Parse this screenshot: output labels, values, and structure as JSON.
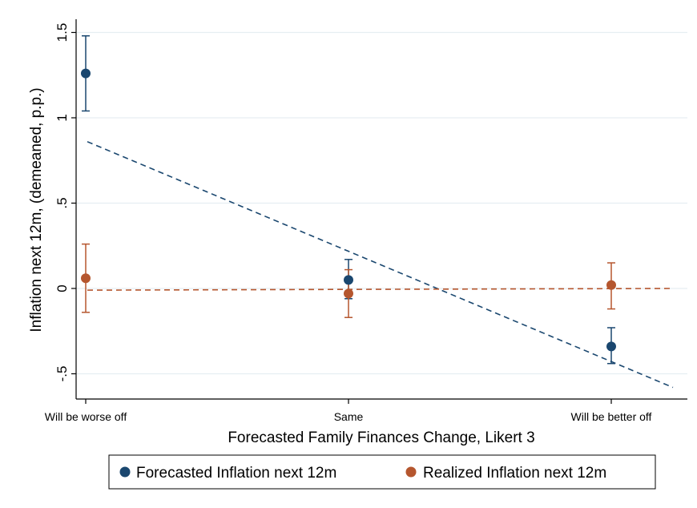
{
  "chart_data": {
    "type": "scatter",
    "xlabel": "Forecasted Family Finances Change, Likert 3",
    "ylabel": "Inflation next 12m, (demeaned, p.p.)",
    "categories": [
      "Will be worse off",
      "Same",
      "Will be better off"
    ],
    "ylim": [
      -0.62,
      1.55
    ],
    "yticks": [
      -0.5,
      0,
      0.5,
      1,
      1.5
    ],
    "ytick_labels": [
      "-.5",
      "0",
      ".5",
      "1",
      "1.5"
    ],
    "grid": true,
    "legend_position": "bottom",
    "series": [
      {
        "name": "Forecasted Inflation next 12m",
        "color": "#1a476f",
        "values": [
          1.26,
          0.05,
          -0.34
        ],
        "ci_low": [
          1.04,
          -0.06,
          -0.44
        ],
        "ci_high": [
          1.48,
          0.17,
          -0.23
        ],
        "fit_line": {
          "start": 0.86,
          "end": -0.58
        }
      },
      {
        "name": "Realized Inflation next 12m",
        "color": "#b5562e",
        "values": [
          0.06,
          -0.03,
          0.02
        ],
        "ci_low": [
          -0.14,
          -0.17,
          -0.12
        ],
        "ci_high": [
          0.26,
          0.11,
          0.15
        ],
        "fit_line": {
          "start": -0.01,
          "end": 0.0
        }
      }
    ]
  }
}
